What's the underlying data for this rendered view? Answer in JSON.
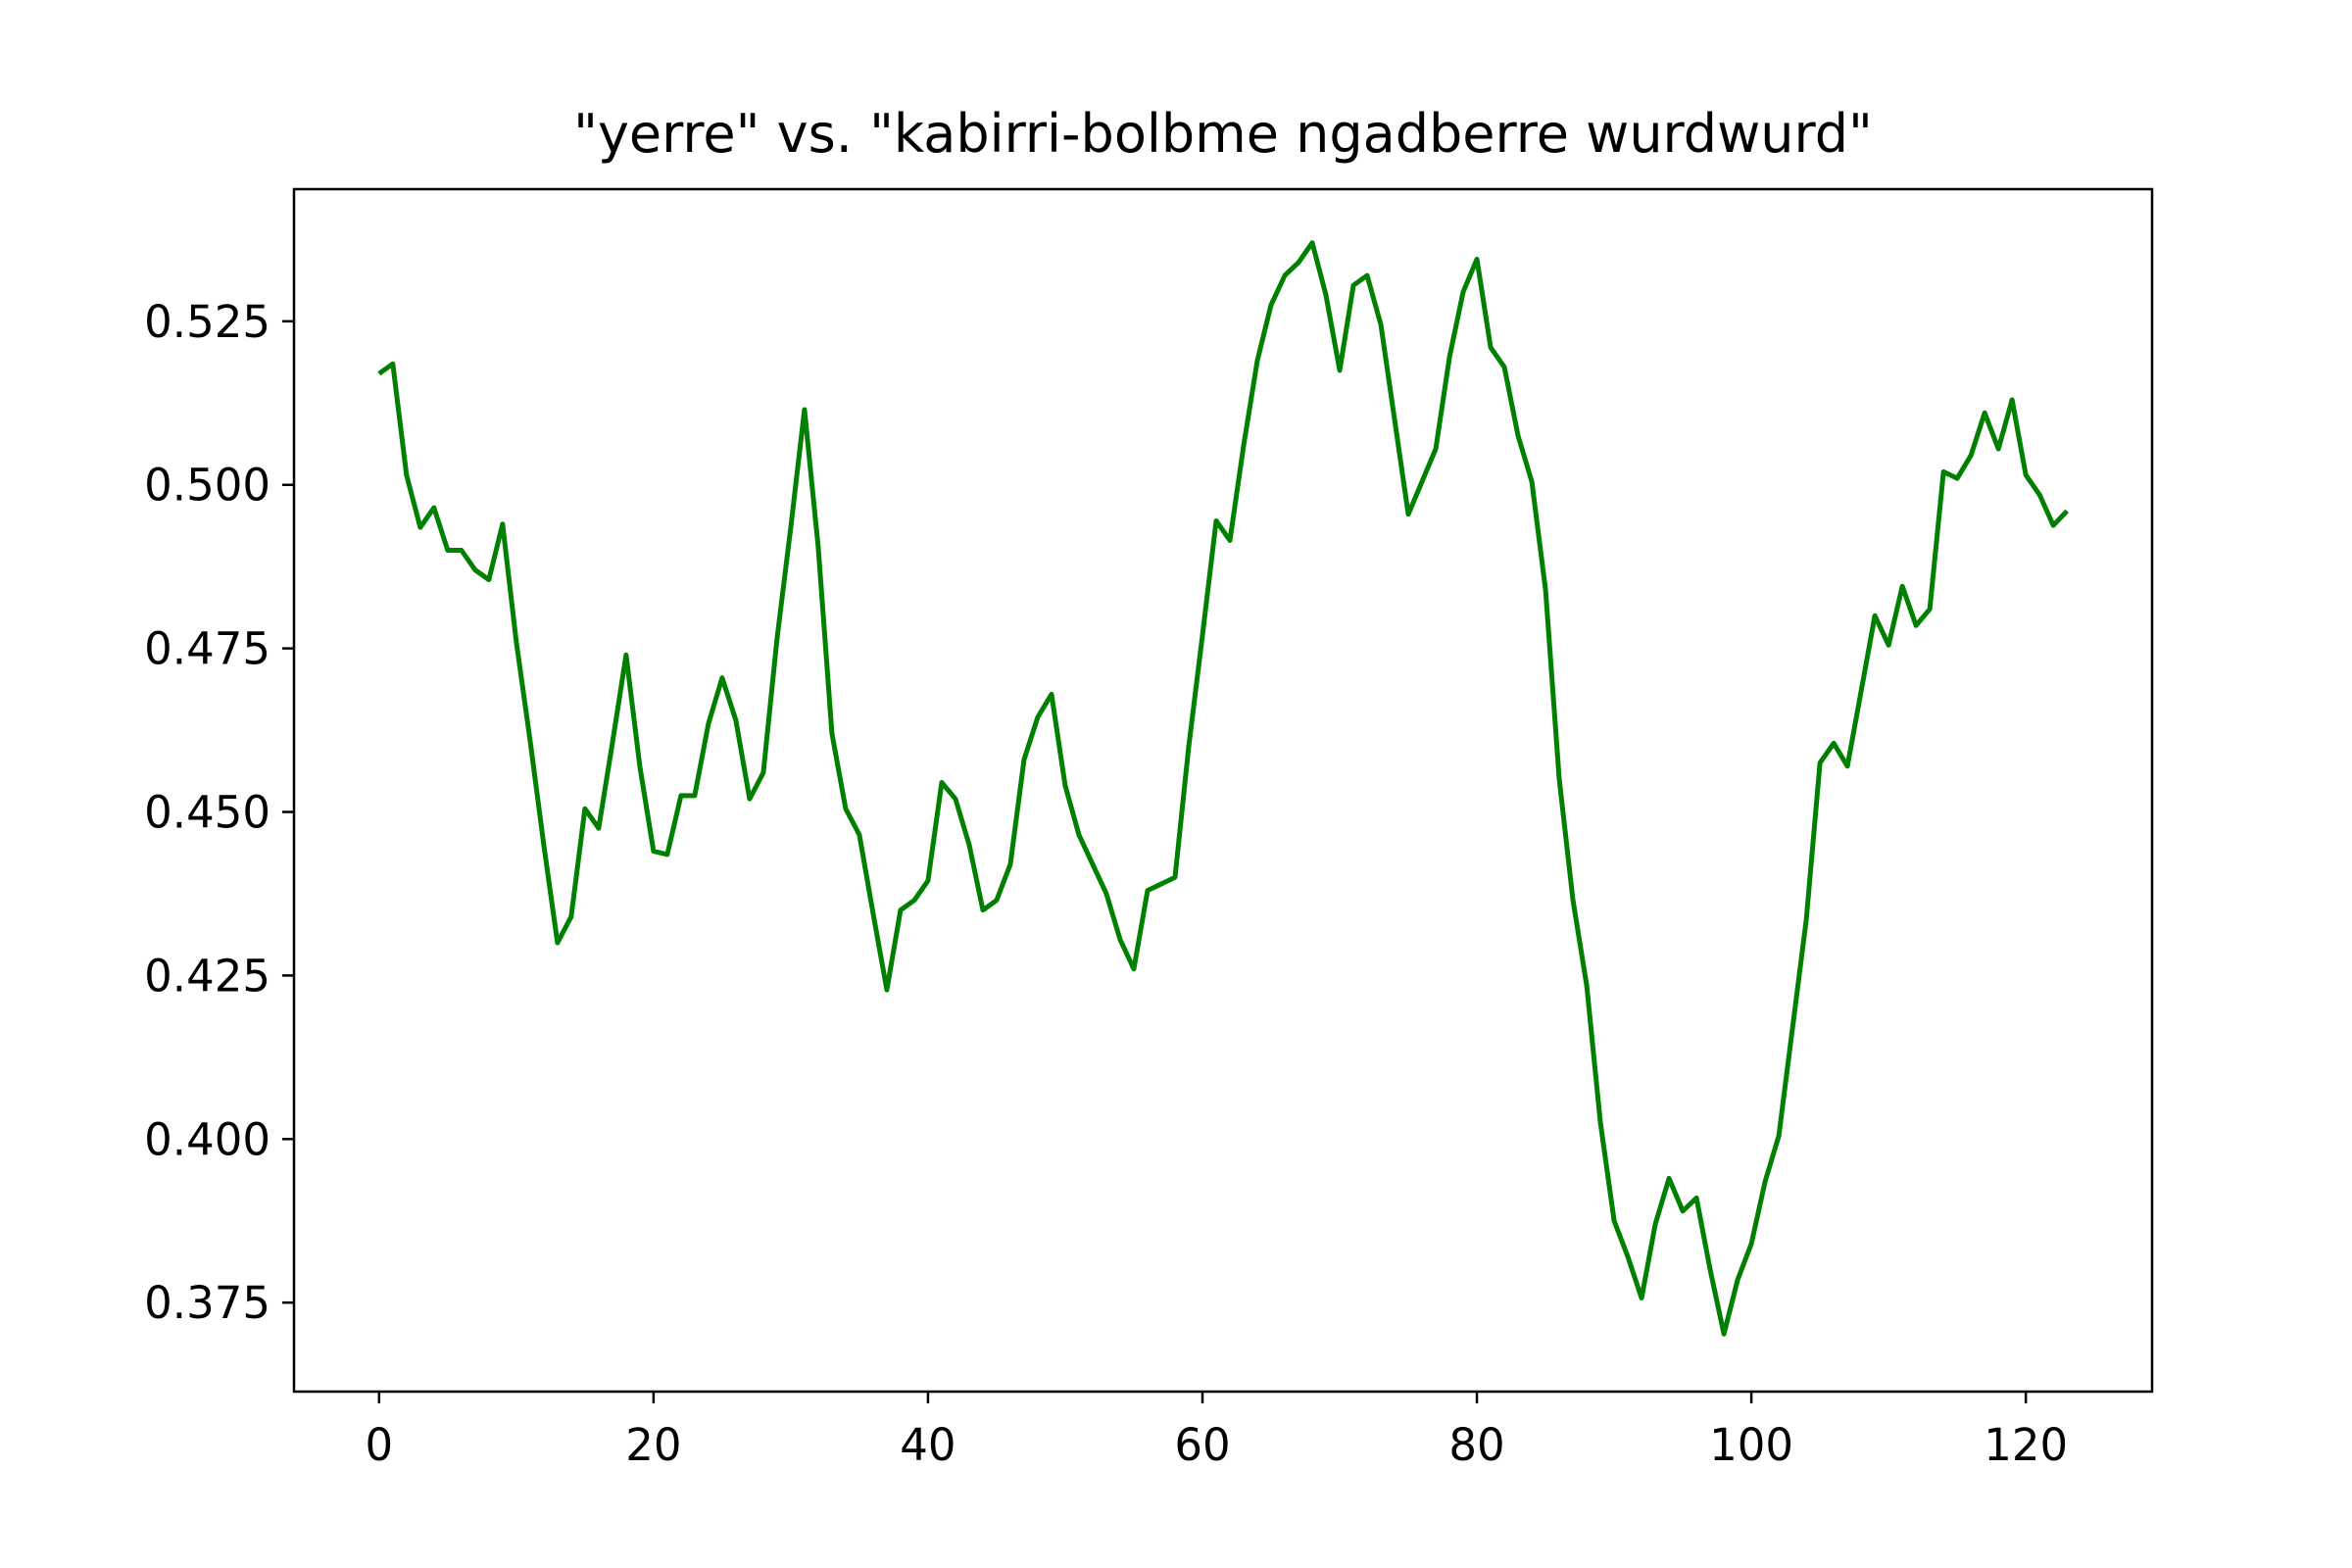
{
  "chart_data": {
    "type": "line",
    "title": "\"yerre\" vs. \"kabirri-bolbme ngadberre wurdwurd\"",
    "xlabel": "",
    "ylabel": "",
    "xlim": [
      -6.2,
      129.2
    ],
    "ylim": [
      0.3614,
      0.5452
    ],
    "xticks": [
      0,
      20,
      40,
      60,
      80,
      100,
      120
    ],
    "xtick_labels": [
      "0",
      "20",
      "40",
      "60",
      "80",
      "100",
      "120"
    ],
    "yticks": [
      0.375,
      0.4,
      0.425,
      0.45,
      0.475,
      0.5,
      0.525
    ],
    "ytick_labels": [
      "0.375",
      "0.400",
      "0.425",
      "0.450",
      "0.475",
      "0.500",
      "0.525"
    ],
    "grid": false,
    "series": [
      {
        "color": "#008000",
        "x": [
          0,
          1,
          2,
          3,
          4,
          5,
          6,
          7,
          8,
          9,
          10,
          11,
          12,
          13,
          14,
          15,
          16,
          17,
          18,
          19,
          20,
          21,
          22,
          23,
          24,
          25,
          26,
          27,
          28,
          29,
          30,
          31,
          32,
          33,
          34,
          35,
          36,
          37,
          38,
          39,
          40,
          41,
          42,
          43,
          44,
          45,
          46,
          47,
          48,
          49,
          50,
          51,
          52,
          53,
          54,
          55,
          56,
          57,
          58,
          59,
          60,
          61,
          62,
          63,
          64,
          65,
          66,
          67,
          68,
          69,
          70,
          71,
          72,
          73,
          74,
          75,
          76,
          77,
          78,
          79,
          80,
          81,
          82,
          83,
          84,
          85,
          86,
          87,
          88,
          89,
          90,
          91,
          92,
          93,
          94,
          95,
          96,
          97,
          98,
          99,
          100,
          101,
          102,
          103,
          104,
          105,
          106,
          107,
          108,
          109,
          110,
          111,
          112,
          113,
          114,
          115,
          116,
          117,
          118,
          119,
          120,
          121,
          122,
          123
        ],
        "y": [
          0.517,
          0.5185,
          0.5015,
          0.4935,
          0.4965,
          0.49,
          0.49,
          0.487,
          0.4855,
          0.494,
          0.476,
          0.461,
          0.445,
          0.43,
          0.434,
          0.4505,
          0.4475,
          0.4605,
          0.474,
          0.457,
          0.444,
          0.4435,
          0.4525,
          0.4525,
          0.4635,
          0.4705,
          0.464,
          0.452,
          0.456,
          0.4765,
          0.4935,
          0.5115,
          0.4905,
          0.462,
          0.4505,
          0.4465,
          0.4345,
          0.4228,
          0.435,
          0.4365,
          0.4395,
          0.4545,
          0.452,
          0.445,
          0.435,
          0.4365,
          0.442,
          0.458,
          0.4645,
          0.468,
          0.454,
          0.4465,
          0.442,
          0.4375,
          0.4305,
          0.426,
          0.438,
          0.439,
          0.44,
          0.46,
          0.477,
          0.4945,
          0.4915,
          0.506,
          0.519,
          0.5275,
          0.532,
          0.534,
          0.537,
          0.529,
          0.5175,
          0.5305,
          0.532,
          0.5245,
          0.51,
          0.4955,
          0.5005,
          0.5055,
          0.5195,
          0.5295,
          0.5345,
          0.521,
          0.518,
          0.5075,
          0.5005,
          0.484,
          0.455,
          0.4365,
          0.4235,
          0.4025,
          0.3875,
          0.382,
          0.3757,
          0.387,
          0.394,
          0.389,
          0.391,
          0.38,
          0.3702,
          0.3785,
          0.384,
          0.3935,
          0.4005,
          0.417,
          0.4335,
          0.4575,
          0.4605,
          0.457,
          0.4685,
          0.48,
          0.4755,
          0.4845,
          0.4785,
          0.481,
          0.502,
          0.501,
          0.5045,
          0.511,
          0.5055,
          0.513,
          0.5015,
          0.4985,
          0.4938,
          0.496
        ]
      }
    ]
  }
}
